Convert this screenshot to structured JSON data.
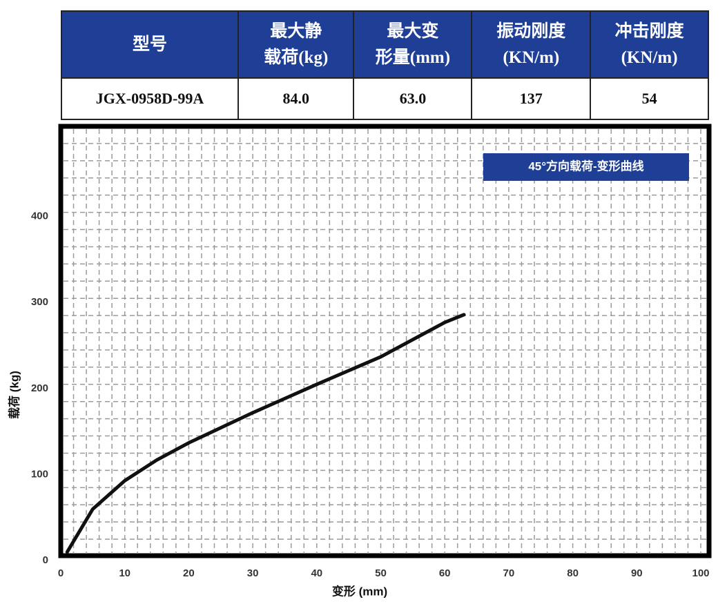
{
  "table": {
    "header": [
      [
        "型号"
      ],
      [
        "最大静",
        "载荷(kg)"
      ],
      [
        "最大变",
        "形量(mm)"
      ],
      [
        "振动刚度",
        "(KN/m)"
      ],
      [
        "冲击刚度",
        "(KN/m)"
      ]
    ],
    "rows": [
      [
        "JGX-0958D-99A",
        "84.0",
        "63.0",
        "137",
        "54"
      ]
    ]
  },
  "chart_data": {
    "type": "line",
    "title": "45°方向载荷-变形曲线",
    "x_label": "变形 (mm)",
    "y_label": "载荷 (kg)",
    "x": [
      1,
      5,
      10,
      15,
      20,
      30,
      40,
      50,
      60,
      63
    ],
    "series": [
      {
        "color": "#111111",
        "values": [
          5,
          55,
          88,
          112,
          132,
          167,
          200,
          232,
          272,
          281
        ]
      }
    ],
    "xlim": [
      0,
      100
    ],
    "xticks": [
      0,
      10,
      20,
      30,
      40,
      50,
      60,
      70,
      80,
      90,
      100
    ],
    "ylim": [
      0,
      500
    ],
    "yticks": [
      0,
      100,
      200,
      300,
      400
    ],
    "grid": true
  }
}
